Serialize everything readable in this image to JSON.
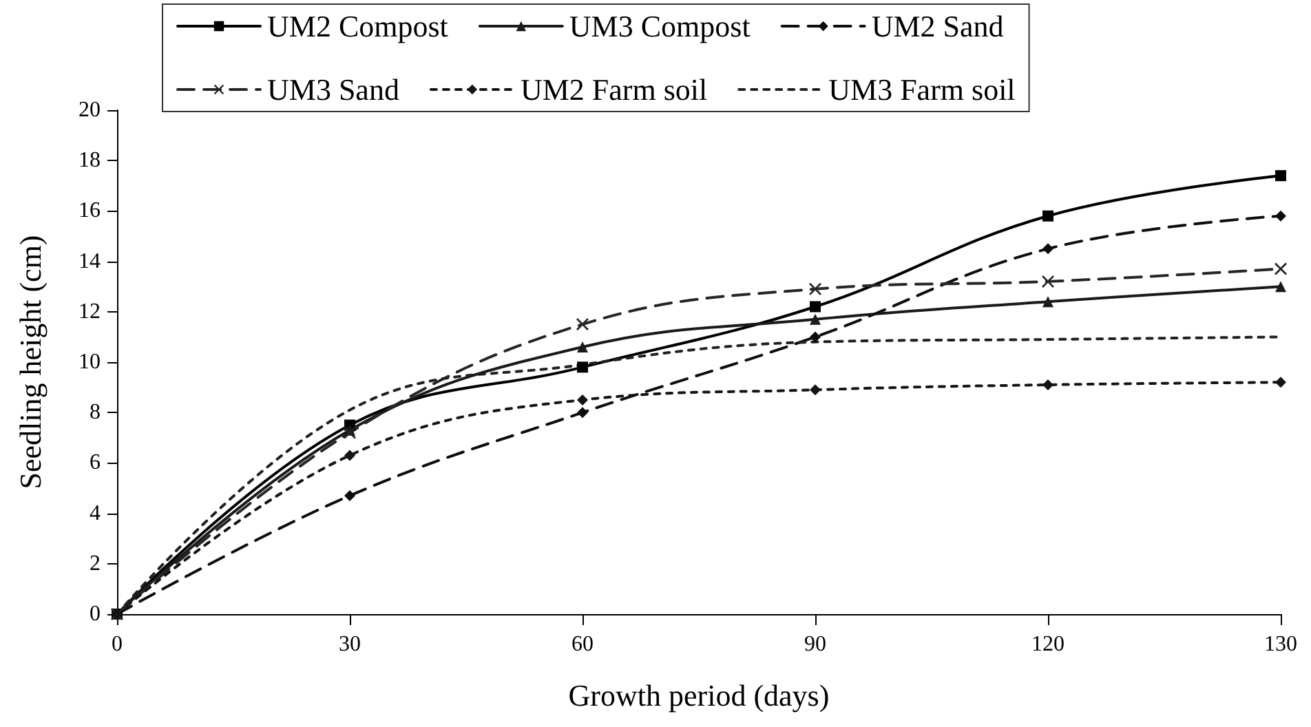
{
  "chart_data": {
    "type": "line",
    "xlabel": "Growth period (days)",
    "ylabel": "Seedling height (cm)",
    "categories": [
      "0",
      "30",
      "60",
      "90",
      "120",
      "130"
    ],
    "series": [
      {
        "name": "UM2 Compost",
        "color": "#000000",
        "marker": "square",
        "line_style": "solid",
        "values": [
          0,
          7.5,
          9.8,
          12.2,
          15.8,
          17.4
        ]
      },
      {
        "name": "UM3 Compost",
        "color": "#1a1a1a",
        "marker": "triangle",
        "line_style": "solid",
        "values": [
          0,
          7.3,
          10.6,
          11.7,
          12.4,
          13.0
        ]
      },
      {
        "name": "UM2 Sand",
        "color": "#0d0d0d",
        "marker": "diamond",
        "line_style": "dashed",
        "values": [
          0,
          4.7,
          8.0,
          11.0,
          14.5,
          15.8
        ]
      },
      {
        "name": "UM3 Sand",
        "color": "#262626",
        "marker": "cross",
        "line_style": "dashed",
        "values": [
          0,
          7.2,
          11.5,
          12.9,
          13.2,
          13.7
        ]
      },
      {
        "name": "UM2 Farm soil",
        "color": "#141414",
        "marker": "diamond",
        "line_style": "dotted",
        "values": [
          0,
          6.3,
          8.5,
          8.9,
          9.1,
          9.2
        ]
      },
      {
        "name": "UM3 Farm soil",
        "color": "#202020",
        "marker": "none",
        "line_style": "dotted",
        "values": [
          0,
          8.1,
          9.9,
          10.8,
          10.9,
          11.0
        ]
      }
    ],
    "ylim": [
      0,
      20
    ],
    "yticks": [
      0,
      2,
      4,
      6,
      8,
      10,
      12,
      14,
      16,
      18,
      20
    ],
    "grid": false,
    "legend": "top"
  }
}
